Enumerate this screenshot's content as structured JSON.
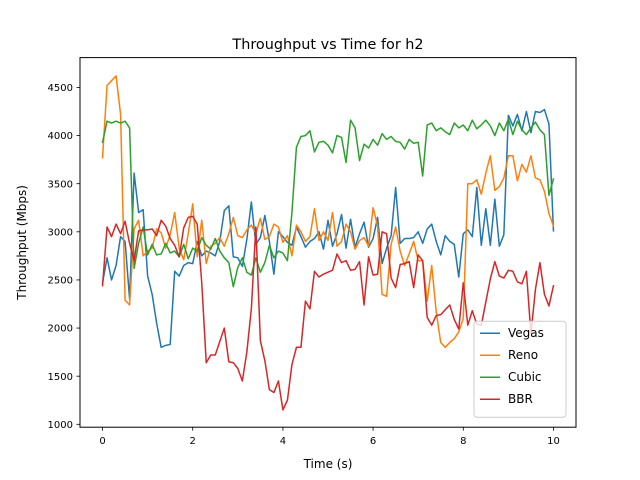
{
  "chart_data": {
    "type": "line",
    "title": "Throughput vs Time for h2",
    "xlabel": "Time (s)",
    "ylabel": "Throughput (Mbps)",
    "xlim": [
      -0.5,
      10.5
    ],
    "ylim": [
      970,
      4810
    ],
    "xticks": [
      0,
      2,
      4,
      6,
      8,
      10
    ],
    "xtick_labels": [
      "0",
      "2",
      "4",
      "6",
      "8",
      "10"
    ],
    "yticks": [
      1000,
      1500,
      2000,
      2500,
      3000,
      3500,
      4000,
      4500
    ],
    "ytick_labels": [
      "1000",
      "1500",
      "2000",
      "2500",
      "3000",
      "3500",
      "4000",
      "4500"
    ],
    "grid": false,
    "legend_position": "lower right",
    "series": [
      {
        "name": "Vegas",
        "color": "#1f77b4",
        "x": [
          0,
          0.1,
          0.2,
          0.3,
          0.4,
          0.5,
          0.6,
          0.7,
          0.8,
          0.9,
          1.0,
          1.1,
          1.2,
          1.3,
          1.4,
          1.5,
          1.6,
          1.7,
          1.8,
          1.9,
          2.0,
          2.1,
          2.2,
          2.3,
          2.4,
          2.5,
          2.6,
          2.7,
          2.8,
          2.9,
          3.0,
          3.1,
          3.2,
          3.3,
          3.4,
          3.5,
          3.6,
          3.7,
          3.8,
          3.9,
          4.0,
          4.1,
          4.2,
          4.3,
          4.4,
          4.5,
          4.6,
          4.7,
          4.8,
          4.9,
          5.0,
          5.1,
          5.2,
          5.3,
          5.4,
          5.5,
          5.6,
          5.7,
          5.8,
          5.9,
          6.0,
          6.1,
          6.2,
          6.3,
          6.4,
          6.5,
          6.6,
          6.7,
          6.8,
          6.9,
          7.0,
          7.1,
          7.2,
          7.3,
          7.4,
          7.5,
          7.6,
          7.7,
          7.8,
          7.9,
          8.0,
          8.1,
          8.2,
          8.3,
          8.4,
          8.5,
          8.6,
          8.7,
          8.8,
          8.9,
          9.0,
          9.1,
          9.2,
          9.3,
          9.4,
          9.5,
          9.6,
          9.7,
          9.8,
          9.9,
          10.0
        ],
        "y": [
          2470,
          2730,
          2500,
          2650,
          2950,
          2900,
          2300,
          3610,
          3200,
          3230,
          2540,
          2350,
          2050,
          1800,
          1820,
          1830,
          2590,
          2540,
          2650,
          2680,
          2670,
          2900,
          2750,
          2800,
          2780,
          2750,
          2900,
          3220,
          3270,
          2740,
          2730,
          2640,
          2920,
          3310,
          2870,
          2940,
          3170,
          2900,
          2560,
          3000,
          2950,
          2890,
          2860,
          3050,
          2950,
          2840,
          2900,
          2930,
          3000,
          2820,
          3120,
          2850,
          2980,
          3180,
          2830,
          3130,
          2840,
          2980,
          3100,
          2840,
          2930,
          3150,
          2670,
          2830,
          2960,
          3460,
          2880,
          2930,
          2930,
          2940,
          3000,
          2880,
          3030,
          3080,
          2900,
          2760,
          2960,
          2900,
          2870,
          2530,
          2980,
          3020,
          2950,
          3460,
          2860,
          3240,
          2860,
          3340,
          2850,
          2970,
          4210,
          4100,
          4220,
          4050,
          4250,
          4030,
          4250,
          4240,
          4270,
          4120,
          3010
        ]
      },
      {
        "name": "Reno",
        "color": "#ff7f0e",
        "x": [
          0,
          0.1,
          0.2,
          0.3,
          0.4,
          0.5,
          0.6,
          0.7,
          0.8,
          0.9,
          1.0,
          1.1,
          1.2,
          1.3,
          1.4,
          1.5,
          1.6,
          1.7,
          1.8,
          1.9,
          2.0,
          2.1,
          2.2,
          2.3,
          2.4,
          2.5,
          2.6,
          2.7,
          2.8,
          2.9,
          3.0,
          3.1,
          3.2,
          3.3,
          3.4,
          3.5,
          3.6,
          3.7,
          3.8,
          3.9,
          4.0,
          4.1,
          4.2,
          4.3,
          4.4,
          4.5,
          4.6,
          4.7,
          4.8,
          4.9,
          5.0,
          5.1,
          5.2,
          5.3,
          5.4,
          5.5,
          5.6,
          5.7,
          5.8,
          5.9,
          6.0,
          6.1,
          6.2,
          6.3,
          6.4,
          6.5,
          6.6,
          6.7,
          6.8,
          6.9,
          7.0,
          7.1,
          7.2,
          7.3,
          7.4,
          7.5,
          7.6,
          7.7,
          7.8,
          7.9,
          8.0,
          8.1,
          8.2,
          8.3,
          8.4,
          8.5,
          8.6,
          8.7,
          8.8,
          8.9,
          9.0,
          9.1,
          9.2,
          9.3,
          9.4,
          9.5,
          9.6,
          9.7,
          9.8,
          9.9,
          10.0
        ],
        "y": [
          3770,
          4520,
          4570,
          4620,
          4220,
          2290,
          2240,
          3030,
          3120,
          2750,
          2800,
          2830,
          3030,
          2990,
          2830,
          2970,
          3200,
          2830,
          2710,
          2980,
          3290,
          2740,
          3120,
          2670,
          2850,
          2880,
          2940,
          2850,
          2980,
          3150,
          2960,
          2940,
          3020,
          3070,
          2980,
          3140,
          2920,
          2950,
          3080,
          3050,
          2890,
          2960,
          2750,
          3070,
          3000,
          2900,
          2950,
          3240,
          2910,
          3000,
          2910,
          3200,
          2850,
          2900,
          3080,
          3000,
          2820,
          2910,
          2940,
          2850,
          3250,
          3060,
          2350,
          2330,
          2870,
          3050,
          2800,
          2650,
          2770,
          2900,
          2700,
          2700,
          2280,
          2650,
          2170,
          1850,
          1800,
          1850,
          1890,
          1960,
          2100,
          3500,
          3500,
          3540,
          3390,
          3610,
          3790,
          3430,
          3470,
          3560,
          3790,
          3790,
          3530,
          3700,
          3620,
          3790,
          3560,
          3540,
          3420,
          3190,
          3060
        ]
      },
      {
        "name": "Cubic",
        "color": "#2ca02c",
        "x": [
          0,
          0.1,
          0.2,
          0.3,
          0.4,
          0.5,
          0.6,
          0.7,
          0.8,
          0.9,
          1.0,
          1.1,
          1.2,
          1.3,
          1.4,
          1.5,
          1.6,
          1.7,
          1.8,
          1.9,
          2.0,
          2.1,
          2.2,
          2.3,
          2.4,
          2.5,
          2.6,
          2.7,
          2.8,
          2.9,
          3.0,
          3.1,
          3.2,
          3.3,
          3.4,
          3.5,
          3.6,
          3.7,
          3.8,
          3.9,
          4.0,
          4.1,
          4.2,
          4.3,
          4.4,
          4.5,
          4.6,
          4.7,
          4.8,
          4.9,
          5.0,
          5.1,
          5.2,
          5.3,
          5.4,
          5.5,
          5.6,
          5.7,
          5.8,
          5.9,
          6.0,
          6.1,
          6.2,
          6.3,
          6.4,
          6.5,
          6.6,
          6.7,
          6.8,
          6.9,
          7.0,
          7.1,
          7.2,
          7.3,
          7.4,
          7.5,
          7.6,
          7.7,
          7.8,
          7.9,
          8.0,
          8.1,
          8.2,
          8.3,
          8.4,
          8.5,
          8.6,
          8.7,
          8.8,
          8.9,
          9.0,
          9.1,
          9.2,
          9.3,
          9.4,
          9.5,
          9.6,
          9.7,
          9.8,
          9.9,
          10.0
        ],
        "y": [
          3930,
          4150,
          4130,
          4150,
          4130,
          4150,
          4080,
          2620,
          2880,
          3050,
          2760,
          2870,
          2760,
          2770,
          2880,
          2780,
          2800,
          2740,
          2870,
          2720,
          2830,
          2800,
          2940,
          2860,
          2820,
          2930,
          2800,
          2730,
          2680,
          2430,
          2630,
          2730,
          2580,
          2550,
          2730,
          2580,
          2680,
          2860,
          2730,
          2800,
          2780,
          2700,
          3200,
          3880,
          3990,
          4000,
          4050,
          3830,
          3930,
          3940,
          3900,
          3820,
          4000,
          3980,
          3720,
          4160,
          4080,
          3740,
          3910,
          3870,
          3960,
          3900,
          4020,
          3960,
          3990,
          3940,
          3930,
          3860,
          3960,
          3920,
          3930,
          3580,
          4110,
          4130,
          4050,
          4080,
          4040,
          4010,
          4130,
          4080,
          4110,
          4050,
          4160,
          4070,
          4110,
          4160,
          4100,
          4000,
          4130,
          4050,
          4170,
          4010,
          4150,
          4060,
          4010,
          4080,
          4140,
          4060,
          4010,
          3380,
          3550
        ]
      },
      {
        "name": "BBR",
        "color": "#d62728",
        "x": [
          0,
          0.1,
          0.2,
          0.3,
          0.4,
          0.5,
          0.6,
          0.7,
          0.8,
          0.9,
          1.0,
          1.1,
          1.2,
          1.3,
          1.4,
          1.5,
          1.6,
          1.7,
          1.8,
          1.9,
          2.0,
          2.1,
          2.2,
          2.3,
          2.4,
          2.5,
          2.6,
          2.7,
          2.8,
          2.9,
          3.0,
          3.1,
          3.2,
          3.3,
          3.4,
          3.5,
          3.6,
          3.7,
          3.8,
          3.9,
          4.0,
          4.1,
          4.2,
          4.3,
          4.4,
          4.5,
          4.6,
          4.7,
          4.8,
          4.9,
          5.0,
          5.1,
          5.2,
          5.3,
          5.4,
          5.5,
          5.6,
          5.7,
          5.8,
          5.9,
          6.0,
          6.1,
          6.2,
          6.3,
          6.4,
          6.5,
          6.6,
          6.7,
          6.8,
          6.9,
          7.0,
          7.1,
          7.2,
          7.3,
          7.4,
          7.5,
          7.6,
          7.7,
          7.8,
          7.9,
          8.0,
          8.1,
          8.2,
          8.3,
          8.4,
          8.5,
          8.6,
          8.7,
          8.8,
          8.9,
          9.0,
          9.1,
          9.2,
          9.3,
          9.4,
          9.5,
          9.6,
          9.7,
          9.8,
          9.9,
          10.0
        ],
        "y": [
          2440,
          3050,
          2950,
          3080,
          2980,
          3110,
          2880,
          2700,
          3010,
          3020,
          3020,
          3030,
          2960,
          3120,
          3060,
          2930,
          2860,
          2740,
          3040,
          3150,
          3160,
          3080,
          2470,
          1640,
          1720,
          1720,
          1860,
          2000,
          1650,
          1640,
          1580,
          1450,
          1750,
          2200,
          3050,
          1870,
          1660,
          1360,
          1330,
          1450,
          1150,
          1250,
          1620,
          1800,
          1800,
          2280,
          2200,
          2590,
          2530,
          2560,
          2580,
          2600,
          2770,
          2680,
          2700,
          2600,
          2610,
          2690,
          2240,
          2740,
          2550,
          2560,
          3000,
          2980,
          2520,
          2420,
          2660,
          2670,
          2690,
          2420,
          2760,
          2700,
          2110,
          2030,
          2130,
          2140,
          2190,
          2240,
          2090,
          1990,
          2470,
          2030,
          2180,
          2040,
          2030,
          2270,
          2510,
          2690,
          2540,
          2520,
          2600,
          2590,
          2480,
          2460,
          2590,
          1940,
          2400,
          2680,
          2350,
          2230,
          2440
        ]
      }
    ]
  }
}
